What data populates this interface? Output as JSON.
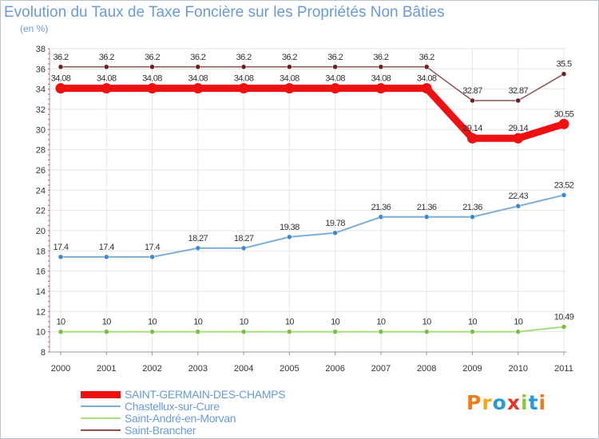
{
  "title": "Evolution du Taux de Taxe Foncière sur les Propriétés Non Bâties",
  "subtitle": "(en %)",
  "logo": {
    "text": "Proxiti",
    "colors": [
      "#f07b1a",
      "#f6a81a",
      "#2a9ad6",
      "#e8342a",
      "#8dc63f",
      "#2a9ad6",
      "#f07b1a"
    ]
  },
  "chart_data": {
    "type": "line",
    "title": "Evolution du Taux de Taxe Foncière sur les Propriétés Non Bâties",
    "ylabel": "(en %)",
    "xlabel": "",
    "ylim": [
      8,
      38
    ],
    "yticks": [
      8,
      10,
      12,
      14,
      16,
      18,
      20,
      22,
      24,
      26,
      28,
      30,
      32,
      34,
      36,
      38
    ],
    "categories": [
      "2000",
      "2001",
      "2002",
      "2003",
      "2004",
      "2005",
      "2006",
      "2007",
      "2008",
      "2009",
      "2010",
      "2011"
    ],
    "series": [
      {
        "name": "SAINT-GERMAIN-DES-CHAMPS",
        "color": "#ee1111",
        "width": 9,
        "values": [
          34.08,
          34.08,
          34.08,
          34.08,
          34.08,
          34.08,
          34.08,
          34.08,
          34.08,
          29.14,
          29.14,
          30.55
        ],
        "labels": [
          "34.08",
          "34.08",
          "34.08",
          "34.08",
          "34.08",
          "34.08",
          "34.08",
          "34.08",
          "34.08",
          "29.14",
          "29.14",
          "30.55"
        ]
      },
      {
        "name": "Chastellux-sur-Cure",
        "color": "#7aaed6",
        "marker": "#3d8ad0",
        "width": 2,
        "values": [
          17.4,
          17.4,
          17.4,
          18.27,
          18.27,
          19.38,
          19.78,
          21.36,
          21.36,
          21.36,
          22.43,
          23.52
        ],
        "labels": [
          "17.4",
          "17.4",
          "17.4",
          "18.27",
          "18.27",
          "19.38",
          "19.78",
          "21.36",
          "21.36",
          "21.36",
          "22.43",
          "23.52"
        ]
      },
      {
        "name": "Saint-André-en-Morvan",
        "color": "#a8dc7e",
        "marker": "#78c040",
        "width": 2,
        "values": [
          10,
          10,
          10,
          10,
          10,
          10,
          10,
          10,
          10,
          10,
          10,
          10.49
        ],
        "labels": [
          "10",
          "10",
          "10",
          "10",
          "10",
          "10",
          "10",
          "10",
          "10",
          "10",
          "10",
          "10.49"
        ]
      },
      {
        "name": "Saint-Brancher",
        "color": "#8f5050",
        "marker": "#6b2020",
        "width": 1.5,
        "values": [
          36.2,
          36.2,
          36.2,
          36.2,
          36.2,
          36.2,
          36.2,
          36.2,
          36.2,
          32.87,
          32.87,
          35.5
        ],
        "labels": [
          "36.2",
          "36.2",
          "36.2",
          "36.2",
          "36.2",
          "36.2",
          "36.2",
          "36.2",
          "36.2",
          "32.87",
          "32.87",
          "35.5"
        ]
      }
    ],
    "legend": "bottom-left"
  }
}
